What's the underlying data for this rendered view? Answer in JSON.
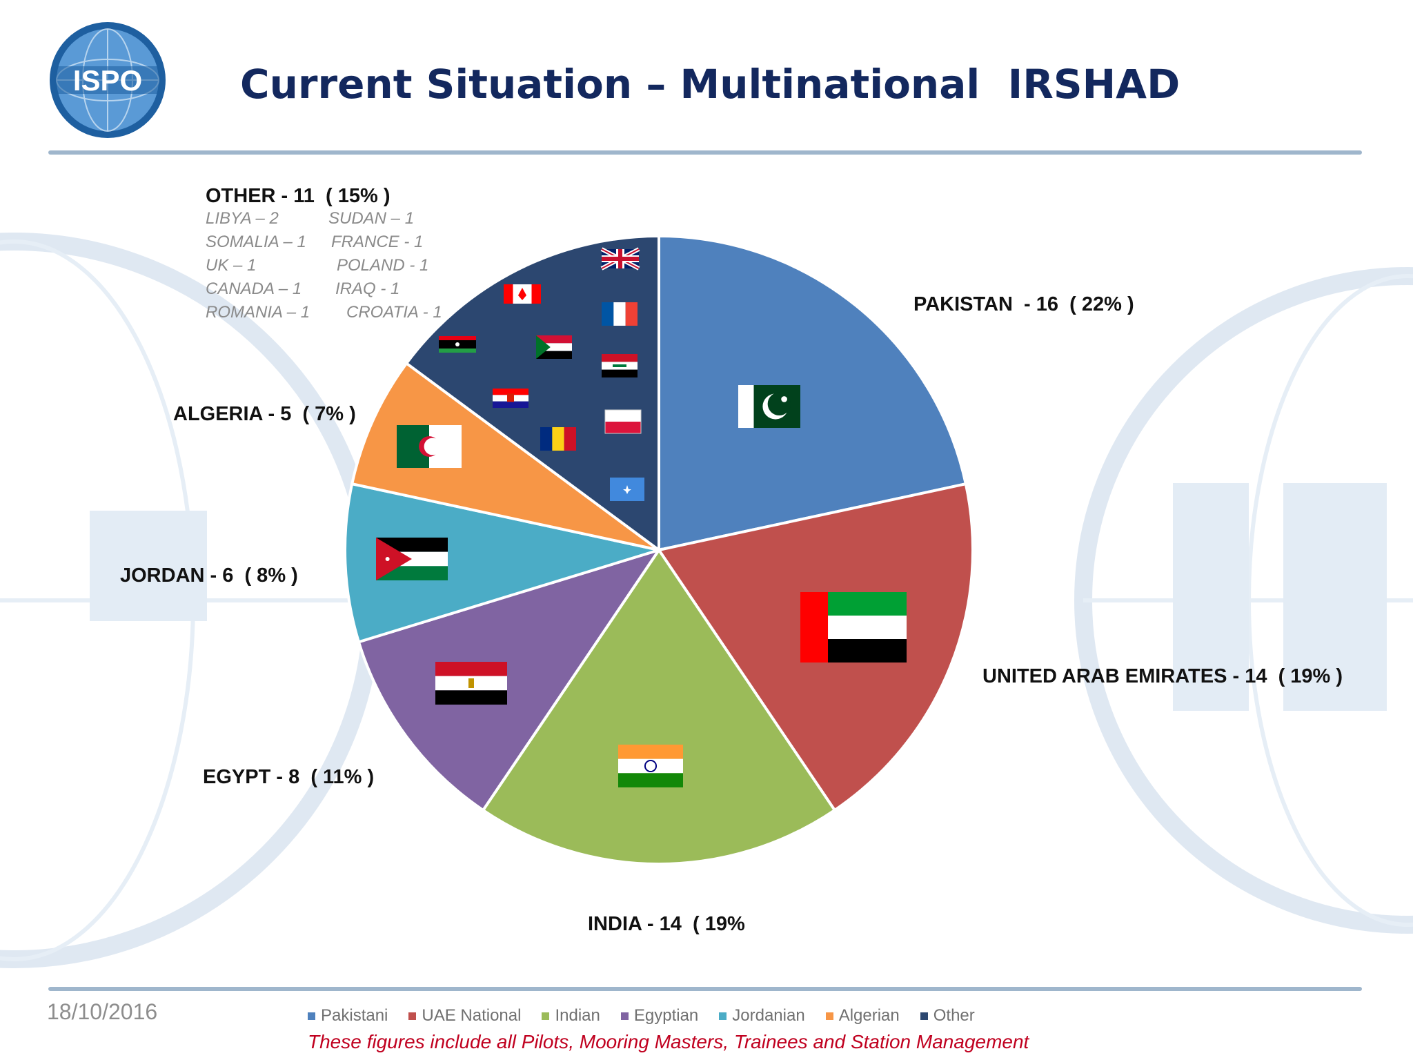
{
  "header": {
    "logo_text": "ISPO",
    "title": "Current Situation – Multinational  IRSHAD"
  },
  "footer": {
    "date": "18/10/2016",
    "note": "These figures include all Pilots, Mooring Masters, Trainees and Station Management"
  },
  "labels": {
    "other_heading": "OTHER - 11  ( 15% )",
    "pakistan": "PAKISTAN  - 16  ( 22% )",
    "uae": "UNITED ARAB EMIRATES - 14  ( 19% )",
    "india": "INDIA - 14  ( 19%",
    "egypt": "EGYPT - 8  ( 11% )",
    "jordan": "JORDAN - 6  ( 8% )",
    "algeria": "ALGERIA - 5  ( 7% )"
  },
  "other_breakdown": [
    [
      "LIBYA – 2",
      "SUDAN – 1"
    ],
    [
      "SOMALIA – 1",
      "FRANCE - 1"
    ],
    [
      "UK – 1",
      "POLAND - 1"
    ],
    [
      "CANADA – 1",
      "IRAQ - 1"
    ],
    [
      "ROMANIA – 1",
      "CROATIA - 1"
    ]
  ],
  "colors": {
    "title": "#13285e",
    "rule": "#9fb6cc",
    "note": "#c0001f"
  },
  "icons": [
    "ispo-globe-logo",
    "flag-pakistan",
    "flag-uae",
    "flag-india",
    "flag-egypt",
    "flag-jordan",
    "flag-algeria",
    "flag-uk",
    "flag-canada",
    "flag-france",
    "flag-libya",
    "flag-sudan",
    "flag-iraq",
    "flag-croatia",
    "flag-poland",
    "flag-romania",
    "flag-somalia"
  ],
  "chart_data": {
    "type": "pie",
    "categories": [
      "Pakistani",
      "UAE National",
      "Indian",
      "Egyptian",
      "Jordanian",
      "Algerian",
      "Other"
    ],
    "values": [
      16,
      14,
      14,
      8,
      6,
      5,
      11
    ],
    "colors": [
      "#4f81bd",
      "#c0504d",
      "#9bbb59",
      "#8064a2",
      "#4bacc6",
      "#f79646",
      "#2c4770"
    ],
    "legend_position": "bottom"
  }
}
